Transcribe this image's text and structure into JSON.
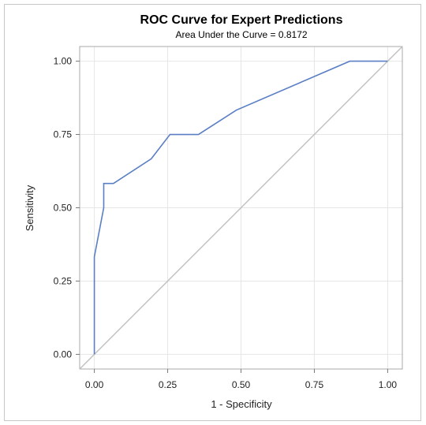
{
  "chart_data": {
    "type": "line",
    "title": "ROC Curve for Expert Predictions",
    "subtitle": "Area Under the Curve = 0.8172",
    "xlabel": "1 - Specificity",
    "ylabel": "Sensitivity",
    "xlim": [
      -0.05,
      1.05
    ],
    "ylim": [
      -0.05,
      1.05
    ],
    "x_ticks": [
      "0.00",
      "0.25",
      "0.50",
      "0.75",
      "1.00"
    ],
    "y_ticks": [
      "0.00",
      "0.25",
      "0.50",
      "0.75",
      "1.00"
    ],
    "grid": true,
    "series": [
      {
        "color": "#5b7fc4",
        "points": [
          [
            0.0,
            0.0
          ],
          [
            0.0,
            0.333
          ],
          [
            0.032,
            0.5
          ],
          [
            0.032,
            0.583
          ],
          [
            0.065,
            0.583
          ],
          [
            0.194,
            0.667
          ],
          [
            0.258,
            0.75
          ],
          [
            0.355,
            0.75
          ],
          [
            0.484,
            0.833
          ],
          [
            0.871,
            1.0
          ],
          [
            1.0,
            1.0
          ]
        ]
      },
      {
        "color": "#c0c0c0",
        "points": [
          [
            -0.05,
            -0.05
          ],
          [
            1.05,
            1.05
          ]
        ]
      }
    ]
  }
}
